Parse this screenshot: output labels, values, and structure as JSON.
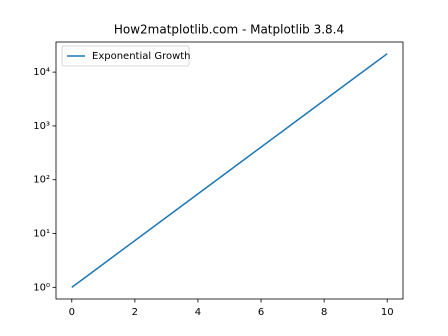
{
  "chart_data": {
    "type": "line",
    "title": "How2matplotlib.com - Matplotlib 3.8.4",
    "x": [
      0,
      1,
      2,
      3,
      4,
      5,
      6,
      7,
      8,
      9,
      10
    ],
    "series": [
      {
        "name": "Exponential Growth",
        "color": "#1f77b4",
        "values": [
          1,
          2.718,
          7.389,
          20.09,
          54.6,
          148.4,
          403.4,
          1097,
          2981,
          8103,
          22026
        ]
      }
    ],
    "xlim": [
      -0.5,
      10.5
    ],
    "xticks": [
      0,
      2,
      4,
      6,
      8,
      10
    ],
    "ylim": [
      0.607,
      36300
    ],
    "yscale": "log",
    "yticks": [
      {
        "value": 1,
        "label": "10⁰"
      },
      {
        "value": 10,
        "label": "10¹"
      },
      {
        "value": 100,
        "label": "10²"
      },
      {
        "value": 1000,
        "label": "10³"
      },
      {
        "value": 10000,
        "label": "10⁴"
      }
    ],
    "grid": false,
    "legend": "upper left"
  }
}
